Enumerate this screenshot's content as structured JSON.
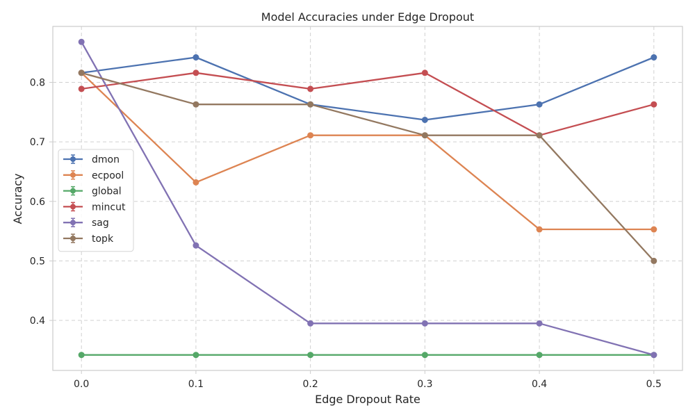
{
  "chart_data": {
    "type": "line",
    "title": "Model Accuracies under Edge Dropout",
    "xlabel": "Edge Dropout Rate",
    "ylabel": "Accuracy",
    "x": [
      0.0,
      0.1,
      0.2,
      0.3,
      0.4,
      0.5
    ],
    "x_tick_labels": [
      "0.0",
      "0.1",
      "0.2",
      "0.3",
      "0.4",
      "0.5"
    ],
    "y_ticks": [
      0.4,
      0.5,
      0.6,
      0.7,
      0.8
    ],
    "y_tick_labels": [
      "0.4",
      "0.5",
      "0.6",
      "0.7",
      "0.8"
    ],
    "xlim": [
      -0.025,
      0.525
    ],
    "ylim": [
      0.316,
      0.894
    ],
    "grid": true,
    "legend_position": "center-left",
    "series": [
      {
        "name": "dmon",
        "color": "#4c72b0",
        "values": [
          0.816,
          0.842,
          0.763,
          0.737,
          0.763,
          0.842
        ]
      },
      {
        "name": "ecpool",
        "color": "#dd8452",
        "values": [
          0.816,
          0.632,
          0.711,
          0.711,
          0.553,
          0.553
        ]
      },
      {
        "name": "global",
        "color": "#55a868",
        "values": [
          0.342,
          0.342,
          0.342,
          0.342,
          0.342,
          0.342
        ]
      },
      {
        "name": "mincut",
        "color": "#c44e52",
        "values": [
          0.789,
          0.816,
          0.789,
          0.816,
          0.711,
          0.763
        ]
      },
      {
        "name": "sag",
        "color": "#8172b3",
        "values": [
          0.868,
          0.526,
          0.395,
          0.395,
          0.395,
          0.342
        ]
      },
      {
        "name": "topk",
        "color": "#937860",
        "values": [
          0.816,
          0.763,
          0.763,
          0.711,
          0.711,
          0.5
        ]
      }
    ]
  }
}
